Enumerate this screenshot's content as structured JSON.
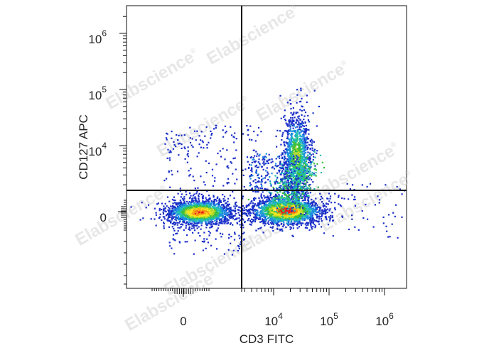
{
  "chart_data": {
    "type": "scatter",
    "style": "density-pseudocolor",
    "xlabel": "CD3 FITC",
    "ylabel": "CD127 APC",
    "xscale": "biexponential",
    "yscale": "biexponential",
    "x_ticks": [
      {
        "base": "0",
        "exp": "",
        "value": 0
      },
      {
        "base": "10",
        "exp": "4",
        "value": 10000
      },
      {
        "base": "10",
        "exp": "5",
        "value": 100000
      },
      {
        "base": "10",
        "exp": "6",
        "value": 1000000
      }
    ],
    "y_ticks": [
      {
        "base": "0",
        "exp": "",
        "value": 0
      },
      {
        "base": "10",
        "exp": "4",
        "value": 10000
      },
      {
        "base": "10",
        "exp": "5",
        "value": 100000
      },
      {
        "base": "10",
        "exp": "6",
        "value": 1000000
      }
    ],
    "quadrant_gate": {
      "x": 2000,
      "y": 1500
    },
    "populations": [
      {
        "x_center": 0,
        "y_center": 0,
        "relative_density": 0.9
      },
      {
        "x_center": 13000,
        "y_center": 0,
        "relative_density": 1.0
      },
      {
        "x_center": 25000,
        "y_center": 7000,
        "relative_density": 0.55
      }
    ],
    "density_colors": [
      "#1a2fc8",
      "#1e8fe0",
      "#23c0b0",
      "#3cbd3c",
      "#b9d92a",
      "#f7e71e",
      "#f99a17",
      "#e81f1c"
    ],
    "grid": false,
    "legend": "none"
  },
  "watermark": {
    "text": "Elabscience",
    "reg": "®"
  }
}
